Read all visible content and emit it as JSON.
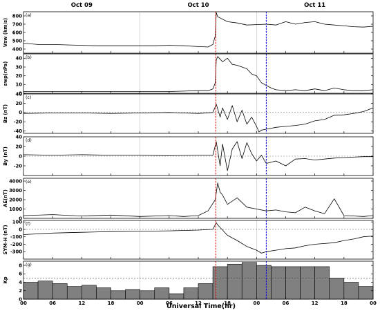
{
  "figure": {
    "day_labels": [
      {
        "label": "Oct 09",
        "t": 12
      },
      {
        "label": "Oct 10",
        "t": 36
      },
      {
        "label": "Oct 11",
        "t": 60
      }
    ],
    "x_tick_labels": [
      "00",
      "06",
      "12",
      "18",
      "00",
      "06",
      "12",
      "18",
      "00",
      "06",
      "12",
      "18",
      "00"
    ],
    "xlabel": "Universal Time(hr)",
    "markers": [
      {
        "t": 39.6,
        "color": "#e00000",
        "style": "dashed"
      },
      {
        "t": 50.0,
        "color": "#0000e0",
        "style": "dashed"
      }
    ],
    "day_boundaries": [
      24,
      48
    ]
  },
  "chart_data": [
    {
      "type": "line",
      "panel": "(a)",
      "ylabel": "Vsw (km/s)",
      "ylim": [
        350,
        850
      ],
      "yticks": [
        400,
        500,
        600,
        700,
        800
      ],
      "xlim": [
        0,
        72
      ],
      "zero_line": false,
      "x": [
        0,
        3,
        6,
        9,
        12,
        15,
        18,
        21,
        24,
        27,
        30,
        33,
        36,
        38,
        39,
        39.5,
        39.7,
        40,
        42,
        44,
        46,
        48,
        50,
        52,
        54,
        56,
        58,
        60,
        62,
        64,
        66,
        68,
        70,
        72
      ],
      "values": [
        470,
        455,
        455,
        450,
        445,
        440,
        440,
        440,
        440,
        440,
        445,
        440,
        430,
        425,
        455,
        560,
        840,
        790,
        730,
        715,
        690,
        695,
        700,
        690,
        730,
        700,
        720,
        730,
        700,
        690,
        680,
        670,
        665,
        675
      ]
    },
    {
      "type": "line",
      "panel": "(b)",
      "ylabel": "swp(nPa)",
      "ylim": [
        0,
        45
      ],
      "yticks": [
        0,
        10,
        20,
        30,
        40
      ],
      "xlim": [
        0,
        72
      ],
      "zero_line": false,
      "x": [
        0,
        6,
        12,
        18,
        24,
        30,
        36,
        38,
        39,
        39.5,
        39.7,
        40,
        41,
        42,
        43,
        44,
        45,
        46,
        47,
        48,
        49,
        50,
        51,
        52,
        54,
        56,
        58,
        60,
        62,
        64,
        66,
        68,
        70,
        72
      ],
      "values": [
        2,
        2,
        2,
        2,
        2,
        2,
        3,
        3,
        5,
        12,
        38,
        42,
        36,
        40,
        33,
        32,
        30,
        28,
        22,
        20,
        12,
        9,
        6,
        4,
        3,
        4,
        3,
        5,
        3,
        6,
        4,
        3,
        3,
        4
      ]
    },
    {
      "type": "line",
      "panel": "(c)",
      "ylabel": "Bz (nT)",
      "ylim": [
        -45,
        40
      ],
      "yticks": [
        -40,
        -20,
        0,
        20,
        40
      ],
      "xlim": [
        0,
        72
      ],
      "zero_line": true,
      "x": [
        0,
        6,
        12,
        18,
        24,
        30,
        36,
        39,
        39.7,
        40.5,
        41,
        42,
        43,
        44,
        45,
        46,
        47,
        48,
        48.5,
        49,
        50,
        52,
        54,
        56,
        58,
        60,
        62,
        64,
        66,
        68,
        70,
        72
      ],
      "values": [
        -2,
        -1,
        -1,
        -2,
        -1,
        0,
        -2,
        0,
        18,
        -10,
        10,
        -15,
        15,
        -20,
        5,
        -25,
        -10,
        -30,
        -42,
        -38,
        -36,
        -32,
        -30,
        -28,
        -25,
        -18,
        -15,
        -6,
        -5,
        -2,
        2,
        10
      ]
    },
    {
      "type": "line",
      "panel": "(d)",
      "ylabel": "By (nT)",
      "ylim": [
        -40,
        40
      ],
      "yticks": [
        -20,
        0,
        20,
        40
      ],
      "xlim": [
        0,
        72
      ],
      "zero_line": true,
      "x": [
        0,
        6,
        12,
        18,
        24,
        30,
        36,
        39,
        39.7,
        40.5,
        41,
        42,
        43,
        44,
        45,
        46,
        47,
        48,
        49,
        50,
        52,
        54,
        56,
        58,
        60,
        62,
        64,
        66,
        68,
        70,
        72
      ],
      "values": [
        3,
        2,
        3,
        2,
        2,
        1,
        2,
        2,
        30,
        -20,
        25,
        -30,
        15,
        30,
        -5,
        28,
        5,
        -10,
        2,
        -15,
        -10,
        -20,
        -6,
        -5,
        -8,
        -6,
        -4,
        -3,
        -2,
        -1,
        -1
      ]
    },
    {
      "type": "line",
      "panel": "(e)",
      "ylabel": "AE(nT)",
      "ylim": [
        0,
        4300
      ],
      "yticks": [
        0,
        1000,
        2000,
        3000,
        4000
      ],
      "xlim": [
        0,
        72
      ],
      "zero_line": false,
      "x": [
        0,
        6,
        12,
        18,
        24,
        30,
        33,
        36,
        38,
        39.5,
        40,
        40.5,
        41,
        42,
        44,
        46,
        48,
        50,
        52,
        54,
        56,
        58,
        60,
        62,
        64,
        66,
        68,
        70,
        72
      ],
      "values": [
        300,
        400,
        250,
        350,
        200,
        300,
        200,
        300,
        800,
        2000,
        3800,
        2800,
        2500,
        1500,
        2200,
        1200,
        1000,
        800,
        900,
        700,
        600,
        1200,
        800,
        500,
        2100,
        300,
        250,
        200,
        300
      ]
    },
    {
      "type": "line",
      "panel": "(f)",
      "ylabel": "SYM-H (nT)",
      "ylim": [
        -400,
        120
      ],
      "yticks": [
        -300,
        -200,
        -100,
        0,
        100
      ],
      "xlim": [
        0,
        72
      ],
      "zero_line": true,
      "x": [
        0,
        6,
        12,
        18,
        24,
        30,
        36,
        39,
        39.7,
        40,
        42,
        44,
        46,
        48,
        49,
        50,
        52,
        54,
        56,
        58,
        60,
        62,
        64,
        66,
        68,
        70,
        72
      ],
      "values": [
        -70,
        -50,
        -40,
        -30,
        -25,
        -20,
        -10,
        0,
        90,
        60,
        -80,
        -150,
        -230,
        -280,
        -320,
        -300,
        -280,
        -260,
        -250,
        -220,
        -200,
        -190,
        -180,
        -150,
        -130,
        -100,
        -90
      ]
    },
    {
      "type": "bar",
      "panel": "(g)",
      "ylabel": "Kp",
      "ylim": [
        0,
        9
      ],
      "yticks": [
        0,
        2,
        4,
        6,
        8
      ],
      "xlim": [
        0,
        72
      ],
      "bar_width_hours": 3,
      "bar_color": "#808080",
      "x": [
        0,
        3,
        6,
        9,
        12,
        15,
        18,
        21,
        24,
        27,
        30,
        33,
        36,
        39,
        42,
        45,
        48,
        51,
        54,
        57,
        60,
        63,
        66,
        69
      ],
      "values": [
        4.0,
        4.3,
        3.7,
        3.0,
        3.3,
        2.7,
        2.0,
        2.3,
        2.0,
        2.7,
        1.3,
        2.7,
        3.7,
        7.7,
        8.3,
        8.7,
        8.0,
        7.7,
        7.7,
        7.7,
        7.7,
        5.0,
        4.0,
        3.0
      ]
    }
  ]
}
